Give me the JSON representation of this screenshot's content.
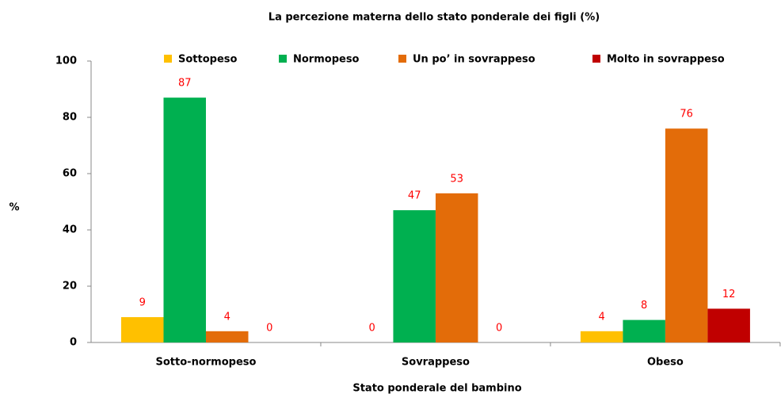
{
  "chart_data": {
    "type": "bar",
    "title": "La percezione materna dello stato ponderale dei figli (%)",
    "x_label": "Stato ponderale  del bambino",
    "y_label": "%",
    "categories": [
      "Sotto-normopeso",
      "Sovrappeso",
      "Obeso"
    ],
    "series": [
      {
        "name": "Sottopeso",
        "color": "#ffc000",
        "values": [
          9,
          0,
          4
        ]
      },
      {
        "name": "Normopeso",
        "color": "#00b050",
        "values": [
          87,
          47,
          8
        ]
      },
      {
        "name": "Un po’ in sovrappeso",
        "color": "#e36c09",
        "values": [
          4,
          53,
          76
        ]
      },
      {
        "name": "Molto in sovrappeso",
        "color": "#c00000",
        "values": [
          0,
          0,
          12
        ]
      }
    ],
    "ylim": [
      0,
      100
    ],
    "yticks": [
      0,
      20,
      40,
      60,
      80,
      100
    ],
    "grid": false,
    "legend": "top",
    "value_label_color": "#ff0000"
  }
}
